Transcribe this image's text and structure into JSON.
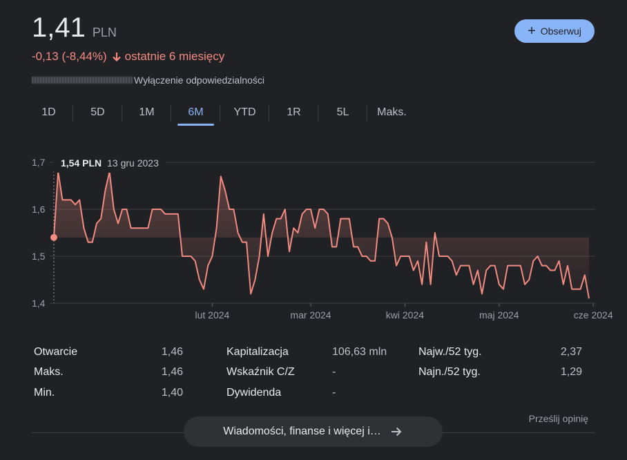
{
  "quote": {
    "price": "1,41",
    "currency": "PLN",
    "change": "-0,13 (-8,44%)",
    "period": "ostatnie 6 miesięcy",
    "disclaimer": "Wyłączenie odpowiedzialności",
    "follow_label": "Obserwuj",
    "change_color": "#f28b82",
    "accent": "#8ab4f8"
  },
  "tabs": [
    "1D",
    "5D",
    "1M",
    "6M",
    "YTD",
    "1R",
    "5L",
    "Maks."
  ],
  "active_tab": "6M",
  "tooltip": {
    "price": "1,54 PLN",
    "date": "13 gru 2023"
  },
  "stats": {
    "col1": [
      {
        "label": "Otwarcie",
        "value": "1,46"
      },
      {
        "label": "Maks.",
        "value": "1,46"
      },
      {
        "label": "Min.",
        "value": "1,40"
      }
    ],
    "col2": [
      {
        "label": "Kapitalizacja",
        "value": "106,63 mln"
      },
      {
        "label": "Wskaźnik C/Z",
        "value": "-"
      },
      {
        "label": "Dywidenda",
        "value": "-"
      }
    ],
    "col3": [
      {
        "label": "Najw./52 tyg.",
        "value": "2,37"
      },
      {
        "label": "Najn./52 tyg.",
        "value": "1,29"
      }
    ]
  },
  "feedback": "Prześlij opinię",
  "news_button": "Wiadomości, finanse i więcej i…",
  "chart_data": {
    "type": "area",
    "line_color": "#f28b82",
    "y_ticks": [
      "1,7",
      "1,6",
      "1,5",
      "1,4"
    ],
    "y_tick_values": [
      1.7,
      1.6,
      1.5,
      1.4
    ],
    "ylim": [
      1.4,
      1.7
    ],
    "x_ticks": [
      {
        "label": "lut 2024",
        "index": 37
      },
      {
        "label": "mar 2024",
        "index": 60
      },
      {
        "label": "kwi 2024",
        "index": 82
      },
      {
        "label": "maj 2024",
        "index": 104
      },
      {
        "label": "cze 2024",
        "index": 126
      }
    ],
    "highlight": {
      "index": 0,
      "value": 1.54
    },
    "values": [
      1.54,
      1.68,
      1.62,
      1.62,
      1.62,
      1.61,
      1.62,
      1.56,
      1.53,
      1.53,
      1.57,
      1.58,
      1.64,
      1.68,
      1.6,
      1.57,
      1.6,
      1.6,
      1.56,
      1.56,
      1.56,
      1.56,
      1.56,
      1.6,
      1.6,
      1.6,
      1.59,
      1.59,
      1.59,
      1.59,
      1.5,
      1.5,
      1.5,
      1.49,
      1.45,
      1.43,
      1.48,
      1.5,
      1.56,
      1.67,
      1.64,
      1.6,
      1.6,
      1.55,
      1.53,
      1.53,
      1.42,
      1.45,
      1.5,
      1.59,
      1.5,
      1.55,
      1.58,
      1.58,
      1.6,
      1.51,
      1.56,
      1.55,
      1.59,
      1.6,
      1.6,
      1.56,
      1.6,
      1.6,
      1.59,
      1.52,
      1.52,
      1.58,
      1.58,
      1.58,
      1.52,
      1.52,
      1.5,
      1.5,
      1.49,
      1.49,
      1.58,
      1.58,
      1.57,
      1.54,
      1.48,
      1.5,
      1.5,
      1.5,
      1.47,
      1.49,
      1.44,
      1.53,
      1.44,
      1.55,
      1.5,
      1.5,
      1.5,
      1.49,
      1.46,
      1.48,
      1.48,
      1.48,
      1.44,
      1.47,
      1.42,
      1.47,
      1.48,
      1.48,
      1.44,
      1.43,
      1.48,
      1.48,
      1.48,
      1.48,
      1.44,
      1.45,
      1.49,
      1.5,
      1.48,
      1.48,
      1.47,
      1.47,
      1.49,
      1.44,
      1.48,
      1.43,
      1.43,
      1.43,
      1.46,
      1.41
    ]
  }
}
